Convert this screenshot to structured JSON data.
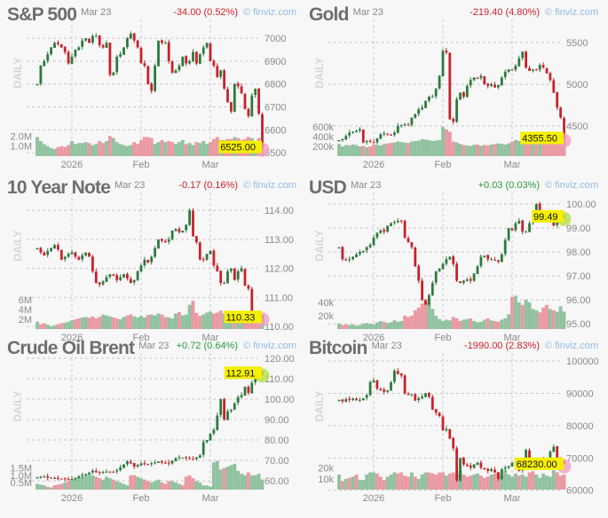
{
  "watermark": "© finviz.com",
  "date": "Mar 23",
  "period_label": "DAILY",
  "colors": {
    "up": "#2d7a3e",
    "down": "#c8222c",
    "vol_up": "#91c2a0",
    "vol_down": "#e99aa2",
    "price_tag": "#f5ef00",
    "grid": "#c8c8c8",
    "marker_down": "#f29bbd",
    "marker_up": "#b5dd3c"
  },
  "x_labels": [
    {
      "label": "2026",
      "index": 10
    },
    {
      "label": "Feb",
      "index": 30
    },
    {
      "label": "Mar",
      "index": 50
    }
  ],
  "chart_data": [
    {
      "type": "candlestick",
      "title": "S&P 500",
      "change": "-34.00 (0.52%)",
      "direction": "down",
      "last_price": "6525.00",
      "ylim": [
        6485,
        7051
      ],
      "y_ticks": [
        "6500",
        "6600",
        "6700",
        "6800",
        "6900",
        "7000"
      ],
      "volume_ticks": [
        {
          "value": 1.0,
          "label": "1.0M"
        },
        {
          "value": 2.0,
          "label": "2.0M"
        }
      ],
      "volume_max": 3.0,
      "close": [
        6800,
        6880,
        6900,
        6930,
        6960,
        6980,
        6975,
        6960,
        6940,
        6890,
        6920,
        6950,
        6960,
        6990,
        7000,
        6980,
        7010,
        7010,
        6970,
        6960,
        6980,
        6840,
        6850,
        6920,
        6930,
        6960,
        7000,
        7020,
        6990,
        6960,
        6890,
        6880,
        6800,
        6770,
        6880,
        6990,
        6980,
        6980,
        6900,
        6850,
        6860,
        6880,
        6920,
        6890,
        6900,
        6940,
        6890,
        6930,
        6960,
        6980,
        6900,
        6880,
        6830,
        6860,
        6780,
        6720,
        6680,
        6800,
        6790,
        6760,
        6690,
        6660,
        6750,
        6780,
        6670,
        6525
      ],
      "volume": [
        1.9,
        1.5,
        1.2,
        1.0,
        0.8,
        0.7,
        0.9,
        1.0,
        0.9,
        1.1,
        1.5,
        1.2,
        1.3,
        1.3,
        1.4,
        1.3,
        1.1,
        1.2,
        1.5,
        1.3,
        1.5,
        2.0,
        1.8,
        1.4,
        1.2,
        1.1,
        1.0,
        1.1,
        1.4,
        1.2,
        1.6,
        1.9,
        1.9,
        1.8,
        1.2,
        1.4,
        1.6,
        1.4,
        1.5,
        1.4,
        1.2,
        1.4,
        1.6,
        1.2,
        1.3,
        1.1,
        1.4,
        1.3,
        1.5,
        1.2,
        1.4,
        1.7,
        1.9,
        1.6,
        1.6,
        1.7,
        1.7,
        1.9,
        1.8,
        1.6,
        1.7,
        1.9,
        1.8,
        1.3,
        1.8,
        1.2
      ]
    },
    {
      "type": "candlestick",
      "title": "Gold",
      "change": "-219.40 (4.80%)",
      "direction": "down",
      "last_price": "4355.50",
      "ylim": [
        4138,
        5691
      ],
      "y_ticks": [
        "4500",
        "5000",
        "5500"
      ],
      "volume_ticks": [
        {
          "value": 200,
          "label": "200k"
        },
        {
          "value": 400,
          "label": "400k"
        },
        {
          "value": 600,
          "label": "600k"
        }
      ],
      "volume_max": 620,
      "close": [
        4330,
        4340,
        4380,
        4420,
        4430,
        4440,
        4460,
        4300,
        4320,
        4310,
        4300,
        4350,
        4400,
        4410,
        4400,
        4390,
        4420,
        4500,
        4510,
        4520,
        4510,
        4600,
        4640,
        4700,
        4720,
        4800,
        4850,
        4850,
        4950,
        5100,
        5400,
        5380,
        4580,
        4550,
        4820,
        4900,
        4850,
        4980,
        5050,
        5080,
        5070,
        5100,
        5000,
        4980,
        5000,
        4960,
        4990,
        5080,
        5150,
        5180,
        5170,
        5220,
        5310,
        5390,
        5200,
        5160,
        5180,
        5170,
        5230,
        5200,
        5130,
        5050,
        4900,
        4720,
        4600,
        4356
      ],
      "volume": [
        250,
        200,
        230,
        220,
        240,
        230,
        200,
        210,
        180,
        200,
        240,
        230,
        220,
        250,
        260,
        270,
        280,
        300,
        290,
        280,
        270,
        300,
        310,
        320,
        350,
        340,
        330,
        310,
        320,
        330,
        600,
        550,
        500,
        300,
        280,
        250,
        230,
        220,
        210,
        230,
        240,
        210,
        230,
        220,
        240,
        250,
        260,
        250,
        240,
        260,
        300,
        330,
        310,
        280,
        260,
        270,
        280,
        260,
        270,
        280,
        290,
        300,
        310,
        350,
        380,
        400
      ]
    },
    {
      "type": "candlestick",
      "title": "10 Year Note",
      "change": "-0.17 (0.16%)",
      "direction": "down",
      "last_price": "110.33",
      "ylim": [
        109.91,
        114.37
      ],
      "y_ticks": [
        "110.00",
        "111.00",
        "112.00",
        "113.00",
        "114.00"
      ],
      "volume_ticks": [
        {
          "value": 2,
          "label": "2M"
        },
        {
          "value": 4,
          "label": "4M"
        },
        {
          "value": 6,
          "label": "6M"
        }
      ],
      "volume_max": 6.2,
      "close": [
        112.7,
        112.55,
        112.45,
        112.6,
        112.7,
        112.8,
        112.65,
        112.3,
        112.4,
        112.5,
        112.55,
        112.4,
        112.3,
        112.45,
        112.55,
        112.4,
        111.9,
        111.5,
        111.45,
        111.55,
        111.7,
        111.8,
        111.75,
        111.6,
        111.7,
        111.8,
        111.65,
        111.5,
        111.6,
        111.9,
        112.1,
        112.3,
        112.2,
        112.4,
        112.7,
        113.0,
        112.95,
        112.9,
        113.0,
        113.3,
        113.35,
        113.25,
        113.3,
        113.5,
        114.0,
        113.1,
        112.9,
        112.3,
        112.3,
        112.5,
        112.6,
        112.1,
        111.9,
        111.5,
        111.5,
        111.9,
        112.0,
        111.6,
        111.9,
        112.0,
        111.4,
        111.3,
        110.4,
        110.35,
        110.3,
        110.33
      ],
      "volume": [
        1.5,
        1.0,
        1.2,
        0.9,
        0.6,
        0.8,
        1.0,
        1.2,
        1.3,
        1.5,
        1.8,
        2.0,
        2.2,
        2.4,
        2.5,
        2.3,
        2.6,
        2.2,
        2.5,
        3.0,
        2.8,
        2.6,
        2.4,
        2.2,
        2.0,
        2.5,
        2.8,
        3.0,
        2.6,
        2.4,
        2.7,
        2.4,
        2.9,
        3.0,
        2.8,
        3.2,
        3.0,
        2.5,
        2.4,
        2.2,
        3.2,
        3.5,
        2.8,
        3.0,
        5.0,
        5.8,
        3.3,
        2.7,
        3.0,
        3.4,
        3.6,
        3.2,
        3.4,
        3.8,
        3.2,
        3.0,
        3.3,
        3.4,
        3.0,
        2.8,
        2.6,
        3.0,
        3.2,
        3.6,
        3.5,
        3.0
      ]
    },
    {
      "type": "candlestick",
      "title": "USD",
      "change": "+0.03 (0.03%)",
      "direction": "up",
      "last_price": "99.49",
      "ylim": [
        94.78,
        100.19
      ],
      "y_ticks": [
        "95.00",
        "96.00",
        "97.00",
        "98.00",
        "99.00",
        "100.00"
      ],
      "volume_ticks": [
        {
          "value": 20,
          "label": "20k"
        },
        {
          "value": 40,
          "label": "40k"
        }
      ],
      "volume_max": 45,
      "close": [
        98.2,
        97.7,
        97.65,
        97.7,
        97.8,
        97.9,
        98.0,
        98.05,
        98.2,
        98.3,
        98.6,
        98.8,
        98.9,
        98.85,
        99.1,
        99.2,
        99.25,
        99.3,
        99.3,
        98.6,
        98.4,
        98.2,
        97.4,
        96.8,
        96.0,
        95.8,
        96.2,
        96.7,
        97.2,
        97.3,
        97.5,
        97.7,
        97.8,
        97.5,
        96.8,
        96.7,
        96.8,
        96.85,
        96.8,
        97.1,
        97.4,
        97.8,
        97.85,
        97.7,
        97.7,
        97.65,
        97.6,
        97.9,
        98.5,
        99.0,
        98.9,
        99.2,
        99.3,
        98.85,
        98.85,
        99.2,
        99.5,
        100.0,
        99.6,
        99.4,
        99.3,
        99.5,
        99.1,
        99.4,
        99.46,
        99.49
      ],
      "volume": [
        8,
        6,
        7,
        6,
        7,
        5,
        6,
        8,
        9,
        8,
        7,
        10,
        12,
        11,
        9,
        10,
        13,
        11,
        12,
        20,
        18,
        20,
        28,
        32,
        38,
        45,
        40,
        30,
        20,
        15,
        12,
        14,
        13,
        18,
        16,
        12,
        14,
        15,
        16,
        12,
        10,
        11,
        14,
        16,
        13,
        12,
        11,
        14,
        16,
        22,
        48,
        50,
        40,
        36,
        44,
        40,
        30,
        28,
        25,
        32,
        36,
        30,
        28,
        26,
        34,
        26
      ]
    },
    {
      "type": "candlestick",
      "title": "Crude Oil Brent",
      "change": "+0.72 (0.64%)",
      "direction": "up",
      "last_price": "112.91",
      "ylim": [
        55.7,
        119.1
      ],
      "y_ticks": [
        "60.00",
        "70.00",
        "80.00",
        "90.00",
        "100.00",
        "110.00",
        "120.00"
      ],
      "volume_ticks": [
        {
          "value": 0.5,
          "label": "0.5M"
        },
        {
          "value": 1.0,
          "label": "1.0M"
        },
        {
          "value": 1.5,
          "label": "1.5M"
        }
      ],
      "volume_max": 2.1,
      "close": [
        61.8,
        62.0,
        62.0,
        61.5,
        61.6,
        61.3,
        61.2,
        61.0,
        61.0,
        60.7,
        60.9,
        61.5,
        62.2,
        63.0,
        63.5,
        64.0,
        65.0,
        64.2,
        64.0,
        64.3,
        64.5,
        64.6,
        64.4,
        65.2,
        66.5,
        68.0,
        69.5,
        68.5,
        67.0,
        67.8,
        68.5,
        68.3,
        68.0,
        68.6,
        69.0,
        69.5,
        69.0,
        68.7,
        68.5,
        69.8,
        71.0,
        71.5,
        71.4,
        71.2,
        71.0,
        70.6,
        71.5,
        72.5,
        79.0,
        80.0,
        83.0,
        85.0,
        92.0,
        100.0,
        90.0,
        94.0,
        95.0,
        98.0,
        101.0,
        102.0,
        106.0,
        103.0,
        108.0,
        110.0,
        112.2,
        112.91
      ],
      "volume": [
        0.4,
        0.35,
        0.3,
        0.2,
        0.15,
        0.3,
        0.35,
        0.4,
        0.5,
        0.6,
        0.7,
        0.8,
        0.8,
        0.9,
        1.0,
        1.1,
        1.0,
        0.9,
        0.8,
        0.7,
        0.9,
        0.8,
        0.7,
        0.6,
        0.5,
        0.4,
        0.3,
        1.0,
        1.0,
        0.9,
        0.8,
        0.7,
        0.6,
        0.5,
        0.6,
        0.7,
        0.5,
        0.4,
        0.6,
        0.6,
        0.5,
        0.4,
        0.3,
        0.9,
        1.0,
        0.8,
        0.6,
        0.5,
        0.3,
        0.3,
        0.2,
        1.9,
        2.0,
        1.4,
        1.5,
        1.6,
        1.7,
        1.8,
        1.3,
        1.1,
        1.0,
        1.2,
        1.0,
        1.0,
        1.1,
        0.7
      ]
    },
    {
      "type": "candlestick",
      "title": "Bitcoin",
      "change": "-1990.00 (2.83%)",
      "direction": "down",
      "last_price": "68230.00",
      "ylim": [
        60200,
        100300
      ],
      "y_ticks": [
        "60000",
        "70000",
        "80000",
        "90000",
        "100000"
      ],
      "volume_ticks": [
        {
          "value": 10,
          "label": "10k"
        },
        {
          "value": 20,
          "label": "20k"
        }
      ],
      "volume_max": 28,
      "close": [
        88000,
        87500,
        88200,
        88000,
        88500,
        87800,
        88000,
        88500,
        89500,
        93500,
        94000,
        91500,
        91000,
        90500,
        91000,
        93500,
        97000,
        96000,
        95500,
        90000,
        89500,
        89800,
        87800,
        88500,
        89000,
        90000,
        89000,
        85000,
        84000,
        83000,
        78500,
        79000,
        76000,
        73000,
        63000,
        70000,
        68000,
        67500,
        67000,
        68000,
        68500,
        67000,
        66500,
        66000,
        66500,
        65500,
        63500,
        66500,
        67000,
        67500,
        68500,
        69000,
        66000,
        70000,
        72500,
        70000,
        67000,
        68500,
        69000,
        69500,
        70000,
        72000,
        73500,
        70000,
        69000,
        68230
      ],
      "volume": [
        14,
        8,
        10,
        11,
        12,
        14,
        9,
        9,
        14,
        16,
        16,
        15,
        12,
        9,
        12,
        14,
        16,
        15,
        16,
        13,
        12,
        16,
        12,
        10,
        14,
        16,
        16,
        15,
        14,
        16,
        16,
        13,
        15,
        16,
        14,
        18,
        14,
        12,
        13,
        14,
        15,
        13,
        11,
        12,
        14,
        15,
        16,
        13,
        18,
        14,
        12,
        15,
        13,
        14,
        12,
        16,
        17,
        14,
        11,
        15,
        13,
        12,
        18,
        16,
        13,
        14
      ]
    }
  ]
}
